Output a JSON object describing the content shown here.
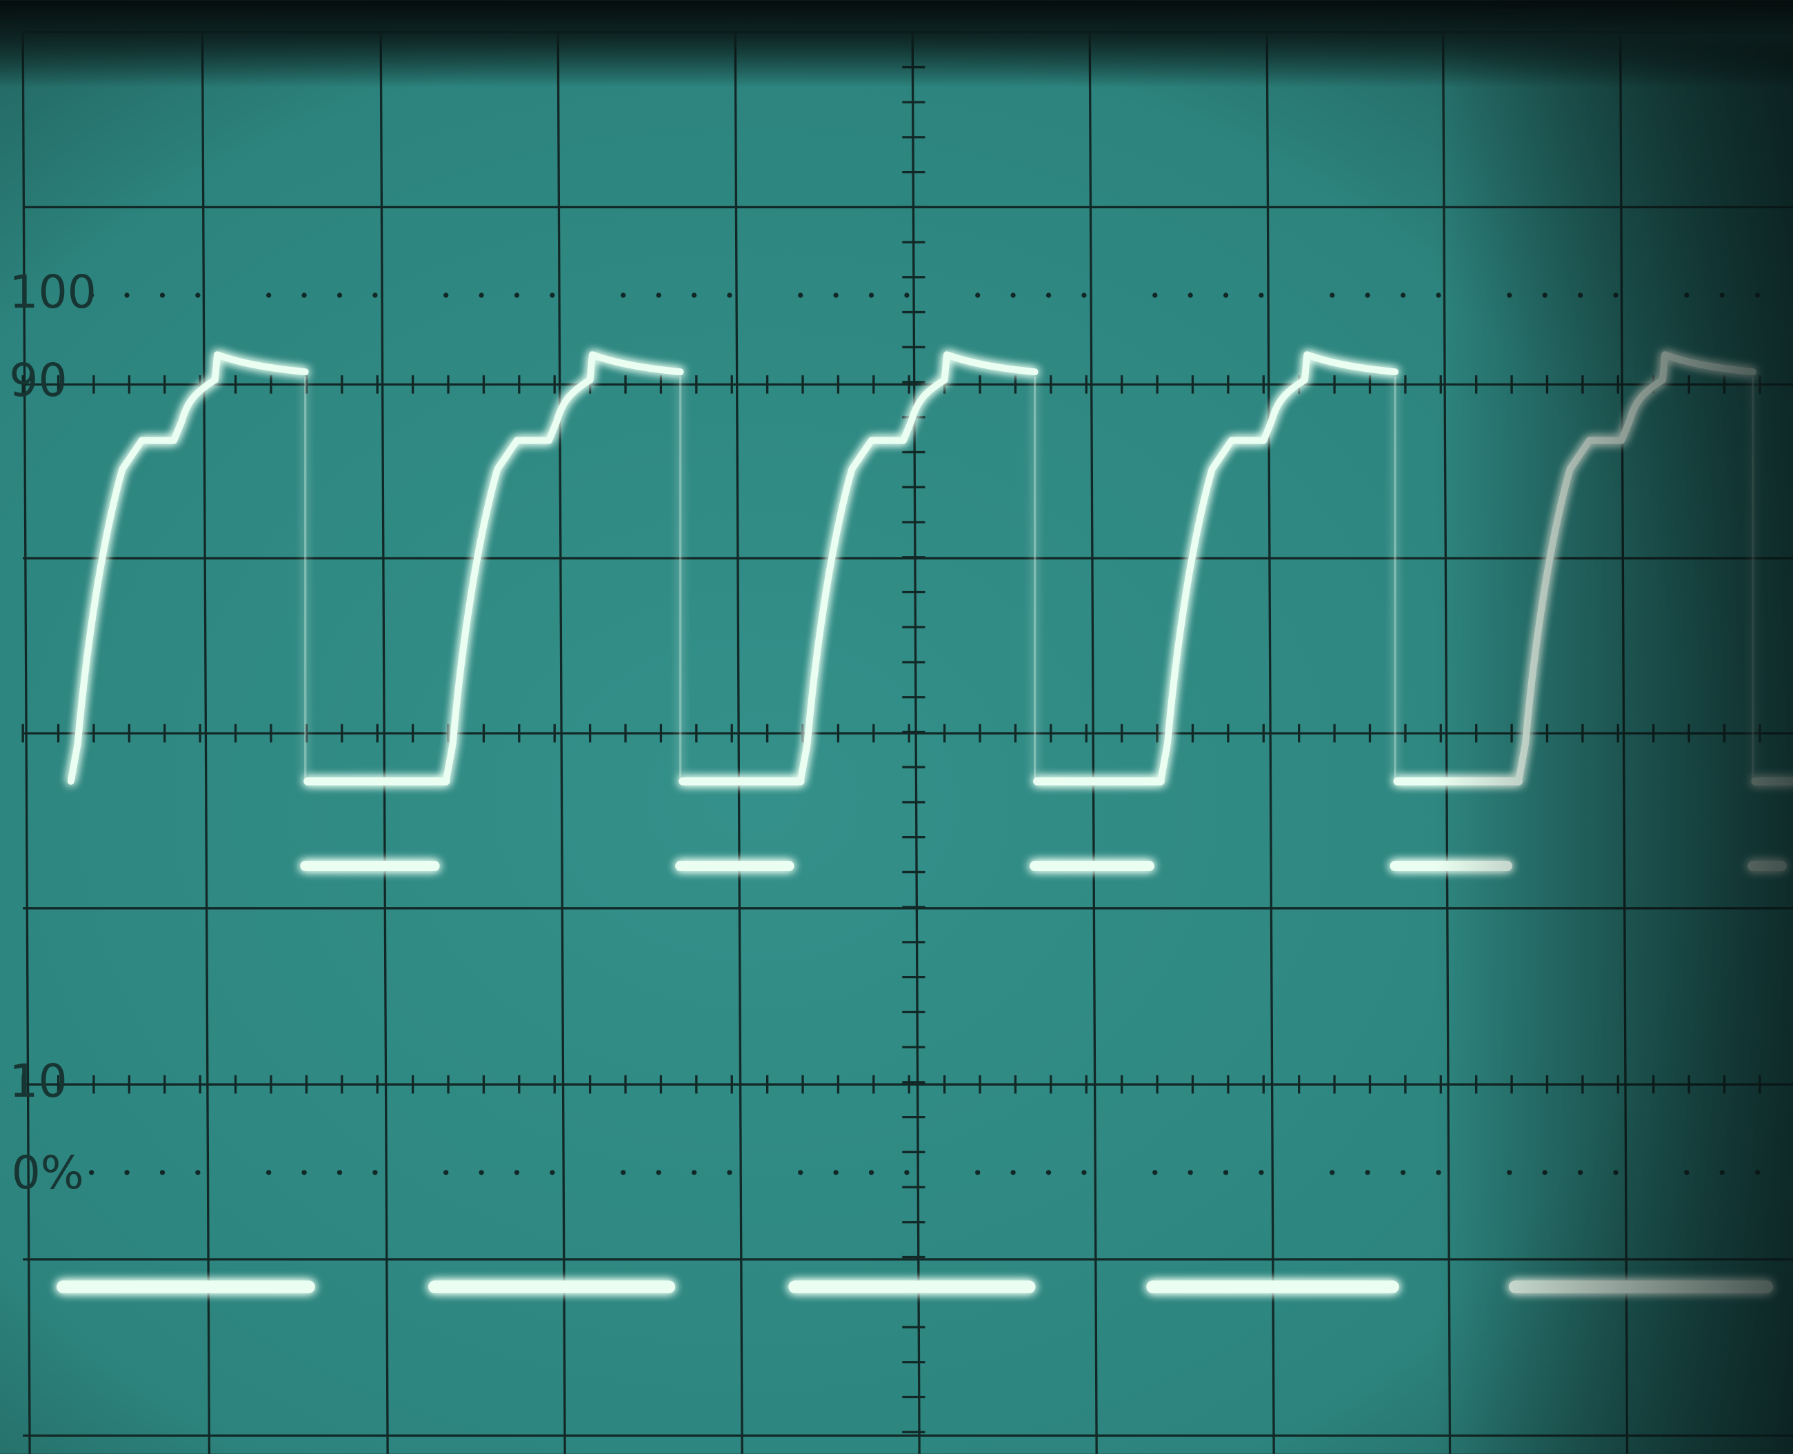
{
  "graticule": {
    "labels": [
      "100",
      "90",
      "10",
      "0%"
    ]
  }
}
